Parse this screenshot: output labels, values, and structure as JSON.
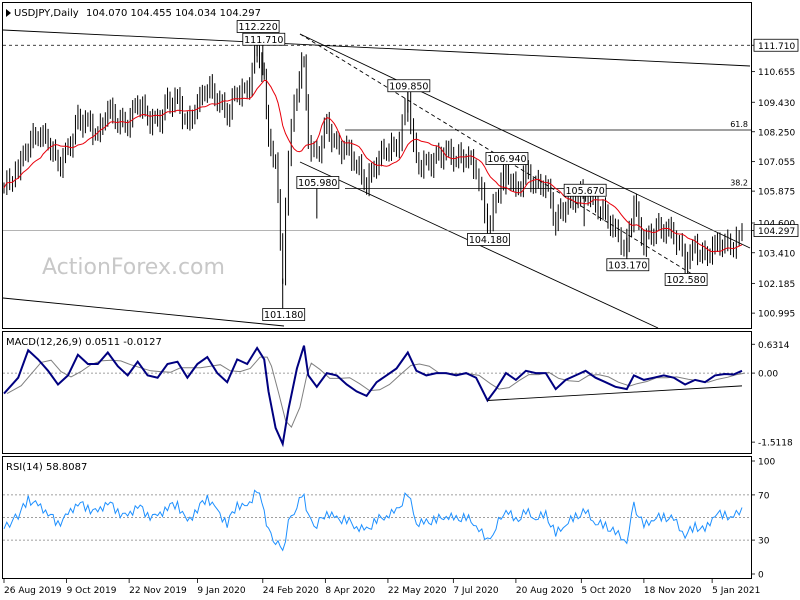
{
  "header": {
    "symbol": "USDJPY,Daily",
    "ohlc": "104.070 104.455 104.034 104.297"
  },
  "watermark": "ActionForex.com",
  "chart_data": [
    {
      "type": "candlestick",
      "panel": "price",
      "ylim": [
        100.4,
        113.4
      ],
      "y_tick_labels": [
        {
          "label": "111.710",
          "value": 111.71,
          "boxed": true
        },
        {
          "label": "110.655",
          "value": 110.655
        },
        {
          "label": "109.430",
          "value": 109.43
        },
        {
          "label": "108.250",
          "value": 108.25
        },
        {
          "label": "107.055",
          "value": 107.055
        },
        {
          "label": "105.875",
          "value": 105.875
        },
        {
          "label": "104.600",
          "value": 104.6
        },
        {
          "label": "104.297",
          "value": 104.297,
          "boxed": true
        },
        {
          "label": "103.410",
          "value": 103.41
        },
        {
          "label": "102.185",
          "value": 102.185
        },
        {
          "label": "100.995",
          "value": 100.995
        }
      ],
      "annotations": [
        {
          "label": "112.220",
          "date": "2020-02-20",
          "value": 112.22
        },
        {
          "label": "111.710",
          "date": "2020-02-24",
          "value": 111.71
        },
        {
          "label": "109.850",
          "date": "2020-06-05",
          "value": 109.85
        },
        {
          "label": "106.940",
          "date": "2020-08-13",
          "value": 106.94
        },
        {
          "label": "105.980",
          "date": "2020-04-02",
          "value": 105.98
        },
        {
          "label": "105.670",
          "date": "2020-10-07",
          "value": 105.67
        },
        {
          "label": "104.180",
          "date": "2020-07-31",
          "value": 104.18
        },
        {
          "label": "103.170",
          "date": "2020-11-06",
          "value": 103.17
        },
        {
          "label": "102.580",
          "date": "2020-12-17",
          "value": 102.58
        },
        {
          "label": "101.180",
          "date": "2020-03-09",
          "value": 101.18
        }
      ],
      "fib_levels": [
        {
          "label": "61.8",
          "value": 108.32
        },
        {
          "label": "38.2",
          "value": 105.98
        }
      ],
      "dotted_level": 111.71,
      "current_price": 104.297,
      "series_close": [
        [
          "2019-08-26",
          106.0
        ],
        [
          "2019-09-05",
          106.8
        ],
        [
          "2019-09-12",
          107.8
        ],
        [
          "2019-09-19",
          108.2
        ],
        [
          "2019-09-26",
          107.9
        ],
        [
          "2019-10-03",
          106.9
        ],
        [
          "2019-10-10",
          107.5
        ],
        [
          "2019-10-17",
          108.7
        ],
        [
          "2019-10-24",
          108.6
        ],
        [
          "2019-10-31",
          108.1
        ],
        [
          "2019-11-07",
          109.2
        ],
        [
          "2019-11-14",
          108.7
        ],
        [
          "2019-11-21",
          108.6
        ],
        [
          "2019-11-28",
          109.5
        ],
        [
          "2019-12-05",
          108.8
        ],
        [
          "2019-12-12",
          108.6
        ],
        [
          "2019-12-19",
          109.4
        ],
        [
          "2019-12-26",
          109.5
        ],
        [
          "2020-01-02",
          108.5
        ],
        [
          "2020-01-09",
          109.4
        ],
        [
          "2020-01-16",
          110.1
        ],
        [
          "2020-01-23",
          109.6
        ],
        [
          "2020-01-30",
          109.0
        ],
        [
          "2020-02-06",
          109.9
        ],
        [
          "2020-02-13",
          109.8
        ],
        [
          "2020-02-20",
          111.8
        ],
        [
          "2020-02-25",
          110.3
        ],
        [
          "2020-02-28",
          107.8
        ],
        [
          "2020-03-04",
          107.0
        ],
        [
          "2020-03-09",
          102.5
        ],
        [
          "2020-03-13",
          107.5
        ],
        [
          "2020-03-19",
          110.0
        ],
        [
          "2020-03-24",
          111.2
        ],
        [
          "2020-03-27",
          107.9
        ],
        [
          "2020-04-02",
          107.3
        ],
        [
          "2020-04-09",
          108.5
        ],
        [
          "2020-04-16",
          107.6
        ],
        [
          "2020-04-23",
          107.6
        ],
        [
          "2020-04-30",
          106.9
        ],
        [
          "2020-05-07",
          106.2
        ],
        [
          "2020-05-14",
          107.1
        ],
        [
          "2020-05-21",
          107.6
        ],
        [
          "2020-05-28",
          107.6
        ],
        [
          "2020-06-05",
          109.6
        ],
        [
          "2020-06-11",
          107.0
        ],
        [
          "2020-06-18",
          106.9
        ],
        [
          "2020-06-25",
          107.2
        ],
        [
          "2020-07-02",
          107.5
        ],
        [
          "2020-07-09",
          107.2
        ],
        [
          "2020-07-16",
          107.3
        ],
        [
          "2020-07-23",
          106.8
        ],
        [
          "2020-07-31",
          104.4
        ],
        [
          "2020-08-06",
          105.6
        ],
        [
          "2020-08-13",
          106.8
        ],
        [
          "2020-08-20",
          105.8
        ],
        [
          "2020-08-27",
          106.6
        ],
        [
          "2020-09-03",
          106.1
        ],
        [
          "2020-09-10",
          106.2
        ],
        [
          "2020-09-17",
          104.7
        ],
        [
          "2020-09-24",
          105.4
        ],
        [
          "2020-10-01",
          105.6
        ],
        [
          "2020-10-08",
          105.9
        ],
        [
          "2020-10-15",
          105.3
        ],
        [
          "2020-10-22",
          104.9
        ],
        [
          "2020-10-29",
          104.2
        ],
        [
          "2020-11-06",
          103.5
        ],
        [
          "2020-11-11",
          105.4
        ],
        [
          "2020-11-18",
          103.8
        ],
        [
          "2020-11-25",
          104.4
        ],
        [
          "2020-12-02",
          104.4
        ],
        [
          "2020-12-09",
          104.2
        ],
        [
          "2020-12-17",
          103.1
        ],
        [
          "2020-12-24",
          103.6
        ],
        [
          "2020-12-31",
          103.2
        ],
        [
          "2021-01-07",
          103.7
        ],
        [
          "2021-01-14",
          103.8
        ],
        [
          "2021-01-20",
          103.6
        ],
        [
          "2021-01-26",
          104.297
        ]
      ],
      "x_tick_labels": [
        {
          "label": "26 Aug 2019",
          "date": "2019-08-26"
        },
        {
          "label": "9 Oct 2019",
          "date": "2019-10-09"
        },
        {
          "label": "22 Nov 2019",
          "date": "2019-11-22"
        },
        {
          "label": "9 Jan 2020",
          "date": "2020-01-09"
        },
        {
          "label": "24 Feb 2020",
          "date": "2020-02-24"
        },
        {
          "label": "8 Apr 2020",
          "date": "2020-04-08"
        },
        {
          "label": "22 May 2020",
          "date": "2020-05-22"
        },
        {
          "label": "7 Jul 2020",
          "date": "2020-07-07"
        },
        {
          "label": "20 Aug 2020",
          "date": "2020-08-20"
        },
        {
          "label": "5 Oct 2020",
          "date": "2020-10-05"
        },
        {
          "label": "18 Nov 2020",
          "date": "2020-11-18"
        },
        {
          "label": "5 Jan 2021",
          "date": "2021-01-05"
        }
      ]
    },
    {
      "type": "line",
      "panel": "macd",
      "title": "MACD(12,26,9) 0.0511 -0.0127",
      "ylim": [
        -1.75,
        0.9
      ],
      "y_tick_labels": [
        {
          "label": "0.6314",
          "value": 0.6314
        },
        {
          "label": "0.00",
          "value": 0.0
        },
        {
          "label": "-1.5118",
          "value": -1.5118
        }
      ],
      "series_macd": [
        [
          "2019-08-26",
          -0.45
        ],
        [
          "2019-09-05",
          -0.1
        ],
        [
          "2019-09-12",
          0.5
        ],
        [
          "2019-09-19",
          0.3
        ],
        [
          "2019-09-26",
          0.05
        ],
        [
          "2019-10-03",
          -0.25
        ],
        [
          "2019-10-10",
          -0.05
        ],
        [
          "2019-10-17",
          0.4
        ],
        [
          "2019-10-24",
          0.2
        ],
        [
          "2019-10-31",
          0.2
        ],
        [
          "2019-11-07",
          0.45
        ],
        [
          "2019-11-14",
          0.15
        ],
        [
          "2019-11-21",
          -0.05
        ],
        [
          "2019-11-28",
          0.25
        ],
        [
          "2019-12-05",
          -0.05
        ],
        [
          "2019-12-12",
          -0.1
        ],
        [
          "2019-12-19",
          0.2
        ],
        [
          "2019-12-26",
          0.25
        ],
        [
          "2020-01-02",
          -0.1
        ],
        [
          "2020-01-09",
          0.2
        ],
        [
          "2020-01-16",
          0.35
        ],
        [
          "2020-01-23",
          0.0
        ],
        [
          "2020-01-30",
          -0.2
        ],
        [
          "2020-02-06",
          0.3
        ],
        [
          "2020-02-13",
          0.2
        ],
        [
          "2020-02-20",
          0.55
        ],
        [
          "2020-02-25",
          0.3
        ],
        [
          "2020-02-28",
          -0.4
        ],
        [
          "2020-03-04",
          -1.2
        ],
        [
          "2020-03-09",
          -1.55
        ],
        [
          "2020-03-13",
          -0.8
        ],
        [
          "2020-03-19",
          0.1
        ],
        [
          "2020-03-24",
          0.6
        ],
        [
          "2020-03-27",
          -0.05
        ],
        [
          "2020-04-02",
          -0.3
        ],
        [
          "2020-04-09",
          0.0
        ],
        [
          "2020-04-16",
          -0.05
        ],
        [
          "2020-04-23",
          -0.25
        ],
        [
          "2020-04-30",
          -0.4
        ],
        [
          "2020-05-07",
          -0.5
        ],
        [
          "2020-05-14",
          -0.2
        ],
        [
          "2020-05-21",
          -0.05
        ],
        [
          "2020-05-28",
          0.1
        ],
        [
          "2020-06-05",
          0.45
        ],
        [
          "2020-06-11",
          0.05
        ],
        [
          "2020-06-18",
          -0.05
        ],
        [
          "2020-06-25",
          0.0
        ],
        [
          "2020-07-02",
          0.0
        ],
        [
          "2020-07-09",
          -0.05
        ],
        [
          "2020-07-16",
          0.0
        ],
        [
          "2020-07-23",
          -0.1
        ],
        [
          "2020-07-31",
          -0.6
        ],
        [
          "2020-08-06",
          -0.35
        ],
        [
          "2020-08-13",
          0.0
        ],
        [
          "2020-08-20",
          -0.15
        ],
        [
          "2020-08-27",
          0.05
        ],
        [
          "2020-09-03",
          0.0
        ],
        [
          "2020-09-10",
          0.0
        ],
        [
          "2020-09-17",
          -0.35
        ],
        [
          "2020-09-24",
          -0.15
        ],
        [
          "2020-10-01",
          -0.05
        ],
        [
          "2020-10-08",
          0.05
        ],
        [
          "2020-10-15",
          -0.1
        ],
        [
          "2020-10-22",
          -0.2
        ],
        [
          "2020-10-29",
          -0.3
        ],
        [
          "2020-11-06",
          -0.35
        ],
        [
          "2020-11-11",
          -0.05
        ],
        [
          "2020-11-18",
          -0.15
        ],
        [
          "2020-11-25",
          -0.1
        ],
        [
          "2020-12-02",
          -0.05
        ],
        [
          "2020-12-09",
          -0.1
        ],
        [
          "2020-12-17",
          -0.25
        ],
        [
          "2020-12-24",
          -0.15
        ],
        [
          "2020-12-31",
          -0.2
        ],
        [
          "2021-01-07",
          -0.05
        ],
        [
          "2021-01-14",
          -0.02
        ],
        [
          "2021-01-20",
          -0.03
        ],
        [
          "2021-01-26",
          0.0511
        ]
      ],
      "trendline": {
        "start": [
          "2020-07-31",
          -0.6
        ],
        "end": [
          "2021-01-26",
          -0.28
        ]
      }
    },
    {
      "type": "line",
      "panel": "rsi",
      "title": "RSI(14) 58.8087",
      "ylim": [
        0,
        100
      ],
      "y_tick_labels": [
        {
          "label": "100",
          "value": 100
        },
        {
          "label": "70",
          "value": 70
        },
        {
          "label": "30",
          "value": 30
        },
        {
          "label": "0",
          "value": 0
        }
      ],
      "levels": [
        70,
        50,
        30
      ],
      "series_rsi": [
        [
          "2019-08-26",
          40
        ],
        [
          "2019-09-05",
          52
        ],
        [
          "2019-09-12",
          66
        ],
        [
          "2019-09-19",
          60
        ],
        [
          "2019-09-26",
          55
        ],
        [
          "2019-10-03",
          44
        ],
        [
          "2019-10-10",
          52
        ],
        [
          "2019-10-17",
          64
        ],
        [
          "2019-10-24",
          58
        ],
        [
          "2019-10-31",
          54
        ],
        [
          "2019-11-07",
          65
        ],
        [
          "2019-11-14",
          55
        ],
        [
          "2019-11-21",
          50
        ],
        [
          "2019-11-28",
          62
        ],
        [
          "2019-12-05",
          52
        ],
        [
          "2019-12-12",
          50
        ],
        [
          "2019-12-19",
          60
        ],
        [
          "2019-12-26",
          62
        ],
        [
          "2020-01-02",
          45
        ],
        [
          "2020-01-09",
          58
        ],
        [
          "2020-01-16",
          68
        ],
        [
          "2020-01-23",
          55
        ],
        [
          "2020-01-30",
          45
        ],
        [
          "2020-02-06",
          62
        ],
        [
          "2020-02-13",
          58
        ],
        [
          "2020-02-20",
          76
        ],
        [
          "2020-02-25",
          55
        ],
        [
          "2020-02-28",
          38
        ],
        [
          "2020-03-04",
          30
        ],
        [
          "2020-03-09",
          20
        ],
        [
          "2020-03-13",
          45
        ],
        [
          "2020-03-19",
          62
        ],
        [
          "2020-03-24",
          70
        ],
        [
          "2020-03-27",
          50
        ],
        [
          "2020-04-02",
          44
        ],
        [
          "2020-04-09",
          55
        ],
        [
          "2020-04-16",
          48
        ],
        [
          "2020-04-23",
          48
        ],
        [
          "2020-04-30",
          42
        ],
        [
          "2020-05-07",
          38
        ],
        [
          "2020-05-14",
          48
        ],
        [
          "2020-05-21",
          52
        ],
        [
          "2020-05-28",
          55
        ],
        [
          "2020-06-05",
          72
        ],
        [
          "2020-06-11",
          45
        ],
        [
          "2020-06-18",
          45
        ],
        [
          "2020-06-25",
          48
        ],
        [
          "2020-07-02",
          52
        ],
        [
          "2020-07-09",
          48
        ],
        [
          "2020-07-16",
          50
        ],
        [
          "2020-07-23",
          44
        ],
        [
          "2020-07-31",
          28
        ],
        [
          "2020-08-06",
          42
        ],
        [
          "2020-08-13",
          58
        ],
        [
          "2020-08-20",
          46
        ],
        [
          "2020-08-27",
          55
        ],
        [
          "2020-09-03",
          50
        ],
        [
          "2020-09-10",
          52
        ],
        [
          "2020-09-17",
          35
        ],
        [
          "2020-09-24",
          45
        ],
        [
          "2020-10-01",
          50
        ],
        [
          "2020-10-08",
          55
        ],
        [
          "2020-10-15",
          46
        ],
        [
          "2020-10-22",
          42
        ],
        [
          "2020-10-29",
          36
        ],
        [
          "2020-11-06",
          30
        ],
        [
          "2020-11-11",
          60
        ],
        [
          "2020-11-18",
          42
        ],
        [
          "2020-11-25",
          50
        ],
        [
          "2020-12-02",
          50
        ],
        [
          "2020-12-09",
          48
        ],
        [
          "2020-12-17",
          35
        ],
        [
          "2020-12-24",
          42
        ],
        [
          "2020-12-31",
          38
        ],
        [
          "2021-01-07",
          54
        ],
        [
          "2021-01-14",
          52
        ],
        [
          "2021-01-20",
          50
        ],
        [
          "2021-01-26",
          58.8087
        ]
      ]
    }
  ],
  "colors": {
    "price": "#000000",
    "ma": "#e8000b",
    "macd": "#000080",
    "signal": "#808080",
    "grid": "#808080",
    "rsi": "#1e90ff",
    "watermark": "#c8c8c8"
  }
}
